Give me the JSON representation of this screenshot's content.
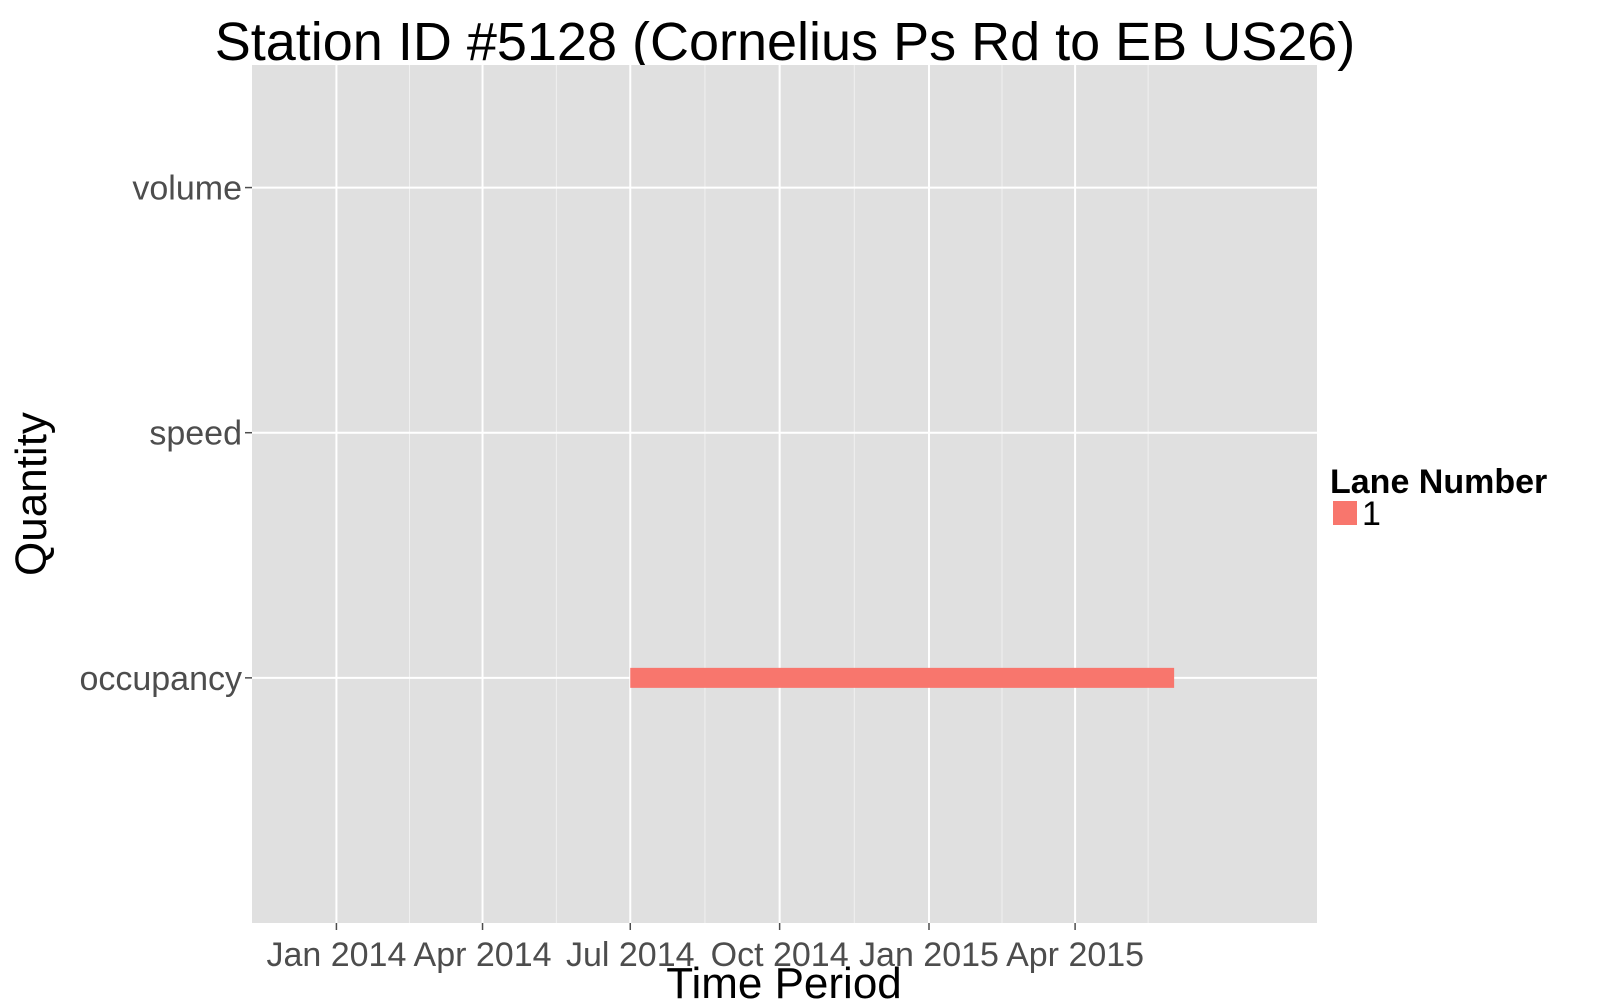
{
  "chart_data": {
    "type": "bar",
    "title": "Station ID #5128 (Cornelius Ps Rd to EB US26)",
    "xlabel": "Time Period",
    "ylabel": "Quantity",
    "x_axis": "date",
    "xlim": [
      "2013-11-10",
      "2015-08-28"
    ],
    "x_ticks": [
      {
        "value": "2014-01-01",
        "label": "Jan 2014"
      },
      {
        "value": "2014-04-01",
        "label": "Apr 2014"
      },
      {
        "value": "2014-07-01",
        "label": "Jul 2014"
      },
      {
        "value": "2014-10-01",
        "label": "Oct 2014"
      },
      {
        "value": "2015-01-01",
        "label": "Jan 2015"
      },
      {
        "value": "2015-04-01",
        "label": "Apr 2015"
      }
    ],
    "categories": [
      "volume",
      "speed",
      "occupancy"
    ],
    "legend": {
      "title": "Lane Number",
      "placement": "right"
    },
    "grid": true,
    "series": [
      {
        "name": "1",
        "color": "#F8766D",
        "segments": [
          {
            "category": "occupancy",
            "start": "2014-07-01",
            "end": "2015-06-01"
          }
        ]
      }
    ]
  }
}
